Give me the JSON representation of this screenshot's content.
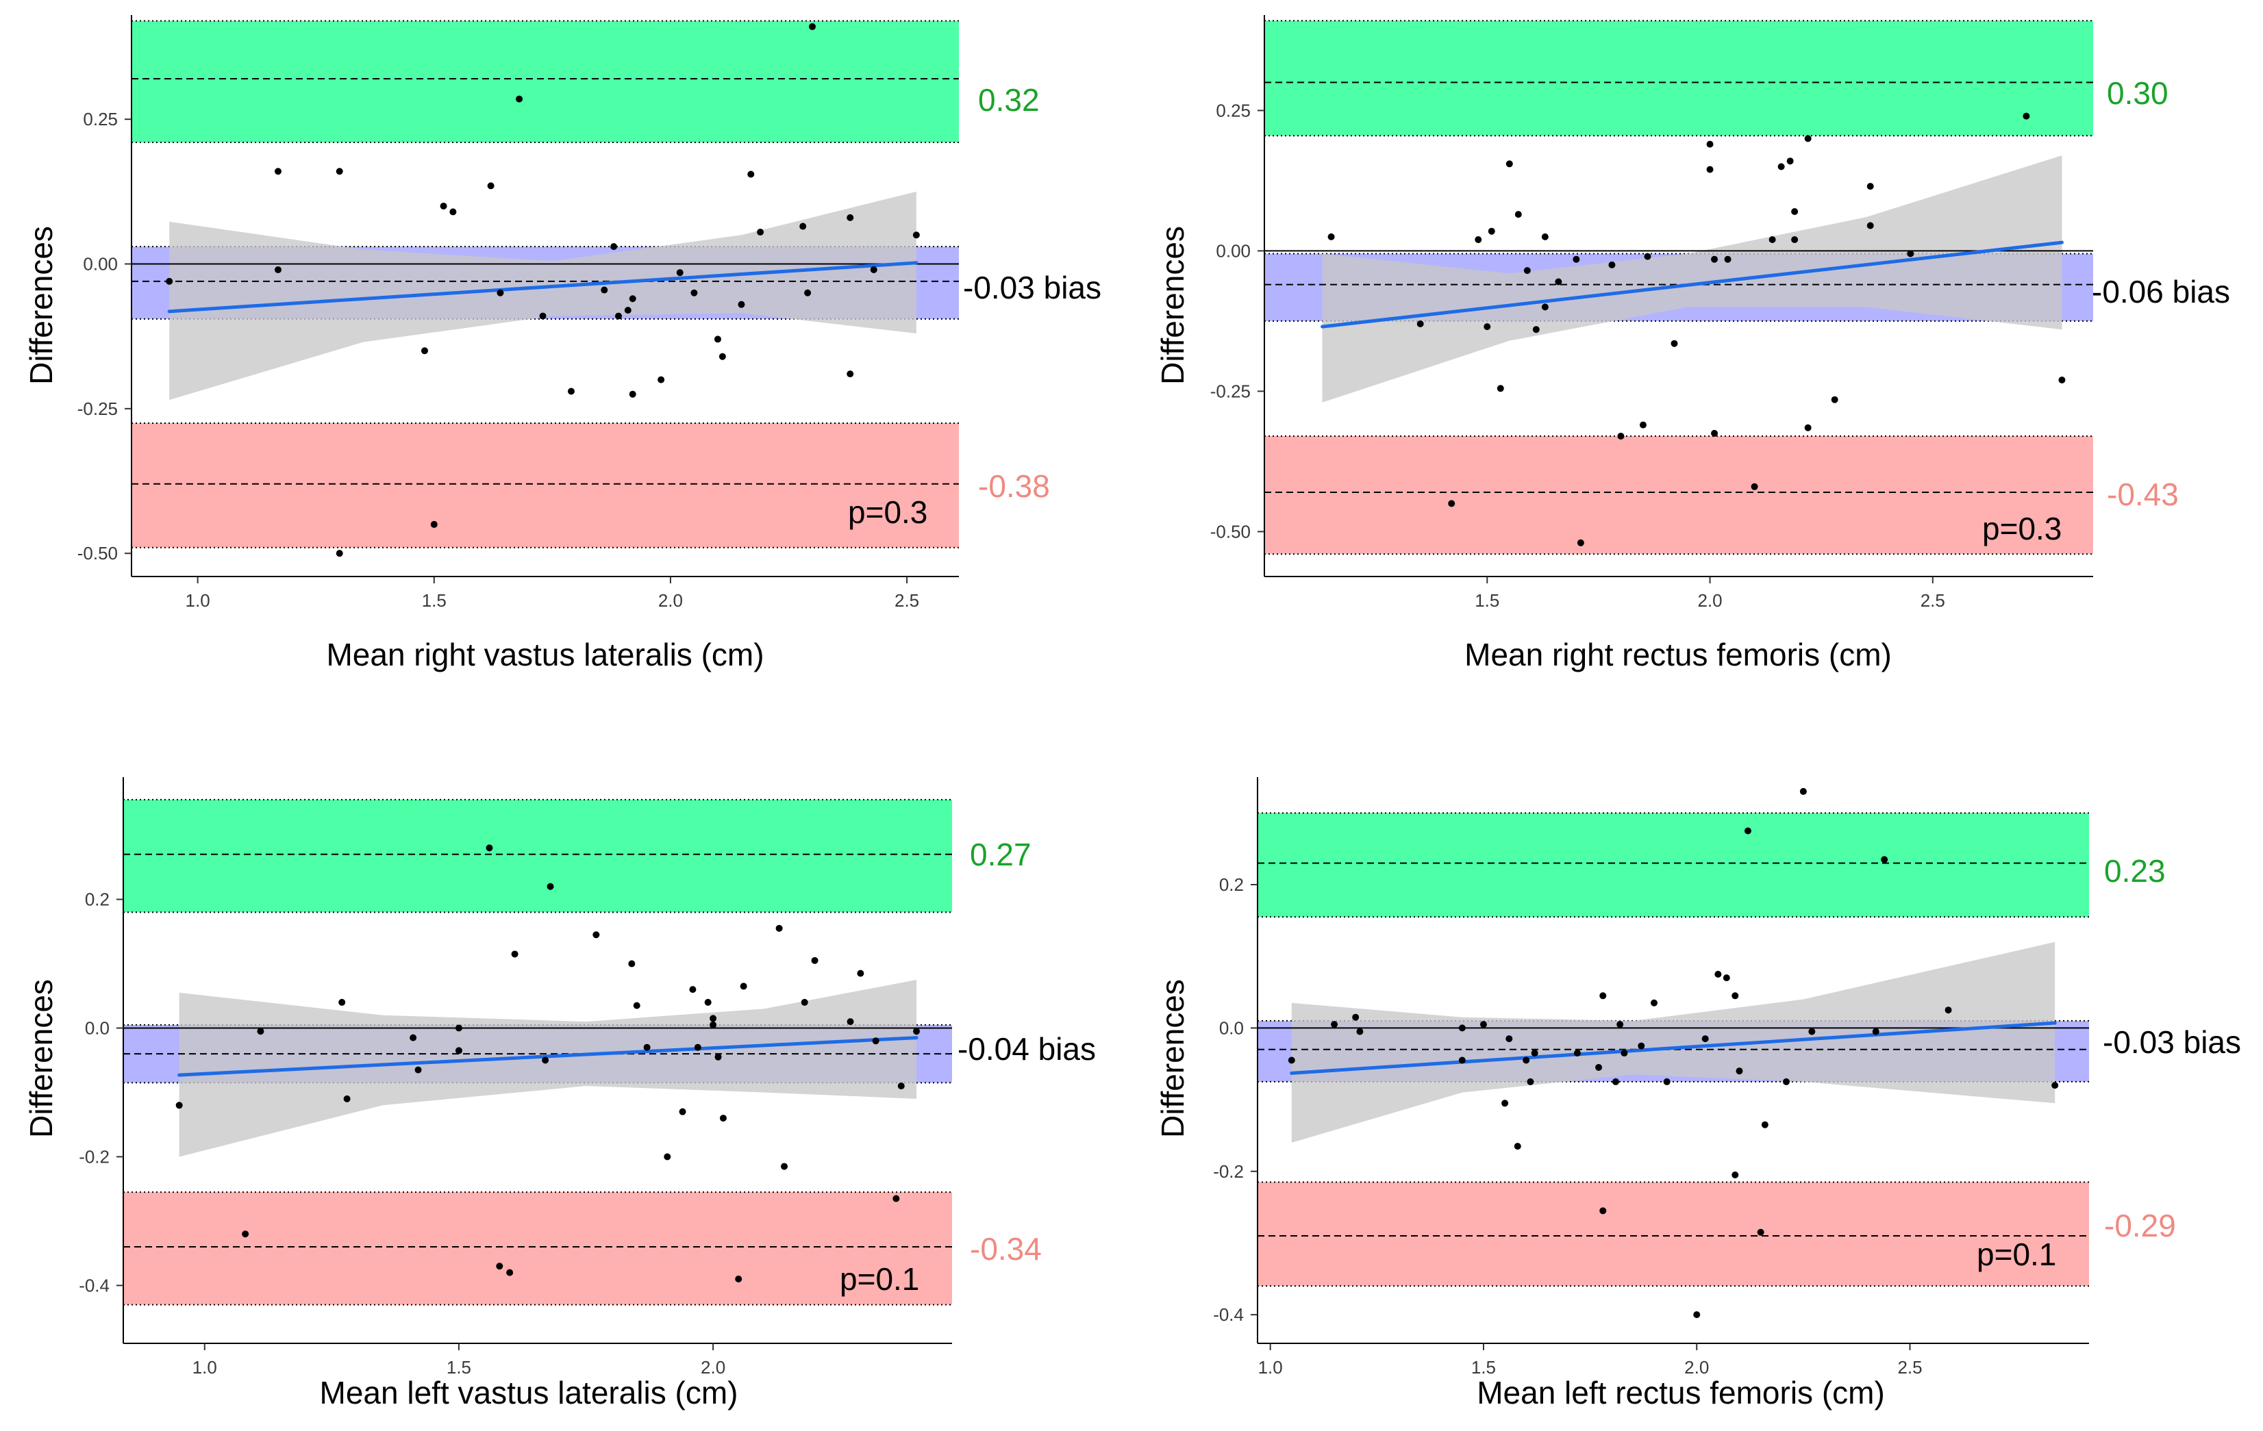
{
  "colors": {
    "upper_band": "#4dffa6",
    "mid_band": "#b3b3ff",
    "lower_band": "#ffb0b0",
    "ci_band": "#c8c8c8",
    "regression": "#1e6be6",
    "upper_label": "#1aa32a",
    "lower_label": "#f08a80",
    "text": "#000000",
    "tick_text": "#3a3a3a"
  },
  "chart_data": [
    {
      "type": "scatter",
      "panel": "top-left",
      "title": "",
      "xlabel": "Mean right vastus lateralis (cm)",
      "ylabel": "Differences",
      "xlim": [
        0.86,
        2.61
      ],
      "ylim": [
        -0.54,
        0.43
      ],
      "xticks": [
        1.0,
        1.5,
        2.0,
        2.5
      ],
      "xtick_labels": [
        "1.0",
        "1.5",
        "2.0",
        "2.5"
      ],
      "yticks": [
        -0.5,
        -0.25,
        0.0,
        0.25
      ],
      "ytick_labels": [
        "-0.50",
        "-0.25",
        "0.00",
        "0.25"
      ],
      "bias": -0.03,
      "upper_loa": 0.32,
      "lower_loa": -0.38,
      "upper_band": [
        0.21,
        0.42
      ],
      "bias_band": [
        -0.095,
        0.03
      ],
      "lower_band": [
        -0.49,
        -0.275
      ],
      "upper_label": "0.32",
      "bias_label": "-0.03 bias",
      "lower_label": "-0.38",
      "p_label": "p=0.3",
      "regression": {
        "x": [
          0.94,
          2.52
        ],
        "y": [
          -0.082,
          0.002
        ]
      },
      "ci": {
        "x": [
          0.94,
          1.35,
          1.75,
          2.15,
          2.52
        ],
        "lower": [
          -0.235,
          -0.135,
          -0.09,
          -0.085,
          -0.12
        ],
        "upper": [
          0.073,
          0.025,
          0.005,
          0.05,
          0.125
        ]
      },
      "points": [
        [
          0.94,
          -0.03
        ],
        [
          1.17,
          0.16
        ],
        [
          1.17,
          -0.01
        ],
        [
          1.3,
          0.16
        ],
        [
          1.3,
          -0.5
        ],
        [
          1.48,
          -0.15
        ],
        [
          1.5,
          -0.45
        ],
        [
          1.52,
          0.1
        ],
        [
          1.54,
          0.09
        ],
        [
          1.62,
          0.135
        ],
        [
          1.64,
          -0.05
        ],
        [
          1.68,
          0.285
        ],
        [
          1.73,
          -0.09
        ],
        [
          1.79,
          -0.22
        ],
        [
          1.86,
          -0.045
        ],
        [
          1.88,
          0.03
        ],
        [
          1.89,
          -0.09
        ],
        [
          1.91,
          -0.08
        ],
        [
          1.92,
          -0.06
        ],
        [
          1.92,
          -0.225
        ],
        [
          1.98,
          -0.2
        ],
        [
          2.02,
          -0.015
        ],
        [
          2.05,
          -0.05
        ],
        [
          2.1,
          -0.13
        ],
        [
          2.11,
          -0.16
        ],
        [
          2.15,
          -0.07
        ],
        [
          2.17,
          0.155
        ],
        [
          2.19,
          0.055
        ],
        [
          2.28,
          0.065
        ],
        [
          2.29,
          -0.05
        ],
        [
          2.3,
          0.41
        ],
        [
          2.38,
          -0.19
        ],
        [
          2.38,
          0.08
        ],
        [
          2.43,
          -0.01
        ],
        [
          2.52,
          0.05
        ]
      ]
    },
    {
      "type": "scatter",
      "panel": "top-right",
      "title": "",
      "xlabel": "Mean right rectus femoris (cm)",
      "ylabel": "Differences",
      "xlim": [
        1.0,
        2.86
      ],
      "ylim": [
        -0.58,
        0.42
      ],
      "xticks": [
        1.5,
        2.0,
        2.5
      ],
      "xtick_labels": [
        "1.5",
        "2.0",
        "2.5"
      ],
      "yticks": [
        -0.5,
        -0.25,
        0.0,
        0.25
      ],
      "ytick_labels": [
        "-0.50",
        "-0.25",
        "0.00",
        "0.25"
      ],
      "bias": -0.06,
      "upper_loa": 0.3,
      "lower_loa": -0.43,
      "upper_band": [
        0.205,
        0.41
      ],
      "bias_band": [
        -0.125,
        -0.005
      ],
      "lower_band": [
        -0.54,
        -0.33
      ],
      "upper_label": "0.30",
      "bias_label": "-0.06 bias",
      "lower_label": "-0.43",
      "p_label": "p=0.3",
      "regression": {
        "x": [
          1.13,
          2.79
        ],
        "y": [
          -0.135,
          0.015
        ]
      },
      "ci": {
        "x": [
          1.13,
          1.55,
          1.95,
          2.35,
          2.79
        ],
        "lower": [
          -0.27,
          -0.16,
          -0.1,
          -0.1,
          -0.14
        ],
        "upper": [
          -0.005,
          -0.04,
          -0.005,
          0.06,
          0.17
        ]
      },
      "points": [
        [
          1.15,
          0.025
        ],
        [
          1.35,
          -0.13
        ],
        [
          1.48,
          0.02
        ],
        [
          1.5,
          -0.135
        ],
        [
          1.51,
          0.035
        ],
        [
          1.53,
          -0.245
        ],
        [
          1.55,
          0.155
        ],
        [
          1.57,
          0.065
        ],
        [
          1.59,
          -0.035
        ],
        [
          1.61,
          -0.14
        ],
        [
          1.63,
          0.025
        ],
        [
          1.63,
          -0.1
        ],
        [
          1.66,
          -0.055
        ],
        [
          1.7,
          -0.015
        ],
        [
          1.42,
          -0.45
        ],
        [
          1.71,
          -0.52
        ],
        [
          1.78,
          -0.025
        ],
        [
          1.8,
          -0.33
        ],
        [
          1.85,
          -0.31
        ],
        [
          1.86,
          -0.01
        ],
        [
          1.92,
          -0.165
        ],
        [
          2.0,
          0.19
        ],
        [
          2.0,
          0.145
        ],
        [
          2.01,
          -0.015
        ],
        [
          2.01,
          -0.325
        ],
        [
          2.04,
          -0.015
        ],
        [
          2.1,
          -0.42
        ],
        [
          2.14,
          0.02
        ],
        [
          2.16,
          0.15
        ],
        [
          2.18,
          0.16
        ],
        [
          2.19,
          0.07
        ],
        [
          2.19,
          0.02
        ],
        [
          2.22,
          -0.315
        ],
        [
          2.22,
          0.2
        ],
        [
          2.28,
          -0.265
        ],
        [
          2.36,
          0.115
        ],
        [
          2.36,
          0.045
        ],
        [
          2.45,
          -0.005
        ],
        [
          2.71,
          0.24
        ],
        [
          2.79,
          -0.23
        ]
      ]
    },
    {
      "type": "scatter",
      "panel": "bottom-left",
      "title": "",
      "xlabel": "Mean left vastus lateralis (cm)",
      "ylabel": "Differences",
      "xlim": [
        0.84,
        2.47
      ],
      "ylim": [
        -0.49,
        0.39
      ],
      "xticks": [
        1.0,
        1.5,
        2.0
      ],
      "xtick_labels": [
        "1.0",
        "1.5",
        "2.0"
      ],
      "yticks": [
        -0.4,
        -0.2,
        0.0,
        0.2
      ],
      "ytick_labels": [
        "-0.4",
        "-0.2",
        "0.0",
        "0.2"
      ],
      "bias": -0.04,
      "upper_loa": 0.27,
      "lower_loa": -0.34,
      "upper_band": [
        0.18,
        0.355
      ],
      "bias_band": [
        -0.085,
        0.005
      ],
      "lower_band": [
        -0.43,
        -0.255
      ],
      "upper_label": "0.27",
      "bias_label": "-0.04 bias",
      "lower_label": "-0.34",
      "p_label": "p=0.1",
      "regression": {
        "x": [
          0.95,
          2.4
        ],
        "y": [
          -0.073,
          -0.015
        ]
      },
      "ci": {
        "x": [
          0.95,
          1.35,
          1.75,
          2.1,
          2.4
        ],
        "lower": [
          -0.2,
          -0.12,
          -0.09,
          -0.1,
          -0.11
        ],
        "upper": [
          0.055,
          0.02,
          0.01,
          0.03,
          0.075
        ]
      },
      "points": [
        [
          0.95,
          -0.12
        ],
        [
          1.08,
          -0.32
        ],
        [
          1.11,
          -0.005
        ],
        [
          1.27,
          0.04
        ],
        [
          1.28,
          -0.11
        ],
        [
          1.41,
          -0.015
        ],
        [
          1.42,
          -0.065
        ],
        [
          1.5,
          0.0
        ],
        [
          1.5,
          -0.035
        ],
        [
          1.56,
          0.28
        ],
        [
          1.58,
          -0.37
        ],
        [
          1.6,
          -0.38
        ],
        [
          1.61,
          0.115
        ],
        [
          1.67,
          -0.05
        ],
        [
          1.68,
          0.22
        ],
        [
          1.77,
          0.145
        ],
        [
          1.84,
          0.1
        ],
        [
          1.85,
          0.035
        ],
        [
          1.87,
          -0.03
        ],
        [
          1.91,
          -0.2
        ],
        [
          1.94,
          -0.13
        ],
        [
          1.96,
          0.06
        ],
        [
          1.97,
          -0.03
        ],
        [
          1.99,
          0.04
        ],
        [
          2.0,
          0.015
        ],
        [
          2.0,
          0.005
        ],
        [
          2.01,
          -0.045
        ],
        [
          2.02,
          -0.14
        ],
        [
          2.05,
          -0.39
        ],
        [
          2.06,
          0.065
        ],
        [
          2.13,
          0.155
        ],
        [
          2.14,
          -0.215
        ],
        [
          2.18,
          0.04
        ],
        [
          2.2,
          0.105
        ],
        [
          2.27,
          0.01
        ],
        [
          2.29,
          0.085
        ],
        [
          2.32,
          -0.02
        ],
        [
          2.36,
          -0.265
        ],
        [
          2.37,
          -0.09
        ],
        [
          2.4,
          -0.005
        ]
      ]
    },
    {
      "type": "scatter",
      "panel": "bottom-right",
      "title": "",
      "xlabel": "Mean left rectus femoris (cm)",
      "ylabel": "Differences",
      "xlim": [
        0.97,
        2.92
      ],
      "ylim": [
        -0.44,
        0.35
      ],
      "xticks": [
        1.0,
        1.5,
        2.0,
        2.5
      ],
      "xtick_labels": [
        "1.0",
        "1.5",
        "2.0",
        "2.5"
      ],
      "yticks": [
        -0.4,
        -0.2,
        0.0,
        0.2
      ],
      "ytick_labels": [
        "-0.4",
        "-0.2",
        "0.0",
        "0.2"
      ],
      "bias": -0.03,
      "upper_loa": 0.23,
      "lower_loa": -0.29,
      "upper_band": [
        0.155,
        0.3
      ],
      "bias_band": [
        -0.075,
        0.01
      ],
      "lower_band": [
        -0.36,
        -0.215
      ],
      "upper_label": "0.23",
      "bias_label": "-0.03 bias",
      "lower_label": "-0.29",
      "p_label": "p=0.1",
      "regression": {
        "x": [
          1.05,
          2.84
        ],
        "y": [
          -0.063,
          0.007
        ]
      },
      "ci": {
        "x": [
          1.05,
          1.45,
          1.85,
          2.25,
          2.84
        ],
        "lower": [
          -0.16,
          -0.09,
          -0.065,
          -0.075,
          -0.105
        ],
        "upper": [
          0.035,
          0.015,
          0.01,
          0.04,
          0.12
        ]
      },
      "points": [
        [
          1.05,
          -0.045
        ],
        [
          1.15,
          0.005
        ],
        [
          1.2,
          0.015
        ],
        [
          1.21,
          -0.005
        ],
        [
          1.45,
          0.0
        ],
        [
          1.45,
          -0.045
        ],
        [
          1.5,
          0.005
        ],
        [
          1.55,
          -0.105
        ],
        [
          1.56,
          -0.015
        ],
        [
          1.58,
          -0.165
        ],
        [
          1.6,
          -0.045
        ],
        [
          1.61,
          -0.075
        ],
        [
          1.62,
          -0.035
        ],
        [
          1.72,
          -0.035
        ],
        [
          1.77,
          -0.055
        ],
        [
          1.78,
          0.045
        ],
        [
          1.78,
          -0.255
        ],
        [
          1.81,
          -0.075
        ],
        [
          1.82,
          0.005
        ],
        [
          1.83,
          -0.035
        ],
        [
          1.87,
          -0.025
        ],
        [
          1.9,
          0.035
        ],
        [
          1.93,
          -0.075
        ],
        [
          2.0,
          -0.4
        ],
        [
          2.02,
          -0.015
        ],
        [
          2.05,
          0.075
        ],
        [
          2.07,
          0.07
        ],
        [
          2.09,
          0.045
        ],
        [
          2.09,
          -0.205
        ],
        [
          2.1,
          -0.06
        ],
        [
          2.12,
          0.275
        ],
        [
          2.15,
          -0.285
        ],
        [
          2.16,
          -0.135
        ],
        [
          2.21,
          -0.075
        ],
        [
          2.25,
          0.33
        ],
        [
          2.27,
          -0.005
        ],
        [
          2.42,
          -0.005
        ],
        [
          2.44,
          0.235
        ],
        [
          2.59,
          0.025
        ],
        [
          2.84,
          -0.08
        ]
      ]
    }
  ]
}
